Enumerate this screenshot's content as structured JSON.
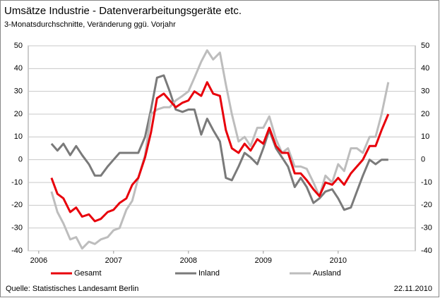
{
  "chart_data": {
    "type": "line",
    "title": "Umsätze Industrie - Datenverarbeitungsgeräte etc.",
    "subtitle": "3-Monatsdurchschnitte, Veränderung ggü. Vorjahr",
    "source": "Quelle: Statistisches Landesamt Berlin",
    "date": "22.11.2010",
    "x": [
      2006.17,
      2006.25,
      2006.33,
      2006.42,
      2006.5,
      2006.58,
      2006.67,
      2006.75,
      2006.83,
      2006.92,
      2007.0,
      2007.08,
      2007.17,
      2007.25,
      2007.33,
      2007.42,
      2007.5,
      2007.58,
      2007.67,
      2007.75,
      2007.83,
      2007.92,
      2008.0,
      2008.08,
      2008.17,
      2008.25,
      2008.33,
      2008.42,
      2008.5,
      2008.58,
      2008.67,
      2008.75,
      2008.83,
      2008.92,
      2009.0,
      2009.08,
      2009.17,
      2009.25,
      2009.33,
      2009.42,
      2009.5,
      2009.58,
      2009.67,
      2009.75,
      2009.83,
      2009.92,
      2010.0,
      2010.08,
      2010.17,
      2010.25,
      2010.33,
      2010.42,
      2010.5,
      2010.58,
      2010.67
    ],
    "series": [
      {
        "name": "Gesamt",
        "color": "#e8000b",
        "values": [
          -8,
          -15,
          -17,
          -23,
          -21,
          -25,
          -24,
          -27,
          -26,
          -23,
          -22,
          -19,
          -17,
          -11,
          -8,
          1,
          12,
          27,
          29,
          26,
          23,
          25,
          26,
          30,
          28,
          34,
          29,
          28,
          13,
          5,
          3,
          7,
          4,
          9,
          7,
          14,
          6,
          3,
          3,
          -6,
          -6,
          -9,
          -13,
          -16,
          -10,
          -11,
          -8,
          -11,
          -6,
          -3,
          0,
          6,
          6,
          13,
          20
        ]
      },
      {
        "name": "Inland",
        "color": "#7a7a7a",
        "values": [
          7,
          4,
          7,
          2,
          6,
          2,
          -2,
          -7,
          -7,
          -3,
          0,
          3,
          3,
          3,
          3,
          10,
          22,
          36,
          37,
          30,
          22,
          21,
          22,
          22,
          11,
          18,
          13,
          8,
          -8,
          -9,
          -3,
          3,
          1,
          -2,
          5,
          13,
          5,
          1,
          -3,
          -12,
          -8,
          -12,
          -19,
          -17,
          -14,
          -13,
          -17,
          -22,
          -21,
          -14,
          -7,
          0,
          -2,
          0,
          0
        ]
      },
      {
        "name": "Ausland",
        "color": "#bdbdbd",
        "values": [
          -14,
          -23,
          -28,
          -35,
          -34,
          -39,
          -36,
          -37,
          -35,
          -34,
          -31,
          -30,
          -22,
          -18,
          -8,
          2,
          20,
          22,
          23,
          23,
          26,
          28,
          30,
          36,
          43,
          48,
          44,
          47,
          33,
          20,
          8,
          10,
          6,
          14,
          14,
          19,
          9,
          3,
          5,
          -3,
          -3,
          -4,
          -10,
          -16,
          -7,
          -10,
          -2,
          -5,
          5,
          5,
          3,
          10,
          10,
          20,
          34
        ]
      }
    ],
    "xlim": [
      2005.86,
      2011.03
    ],
    "xticks": [
      2006,
      2007,
      2008,
      2009,
      2010
    ],
    "ylim": [
      -40,
      50
    ],
    "yticks": [
      -40,
      -30,
      -20,
      -10,
      0,
      10,
      20,
      30,
      40,
      50
    ],
    "grid": true
  }
}
